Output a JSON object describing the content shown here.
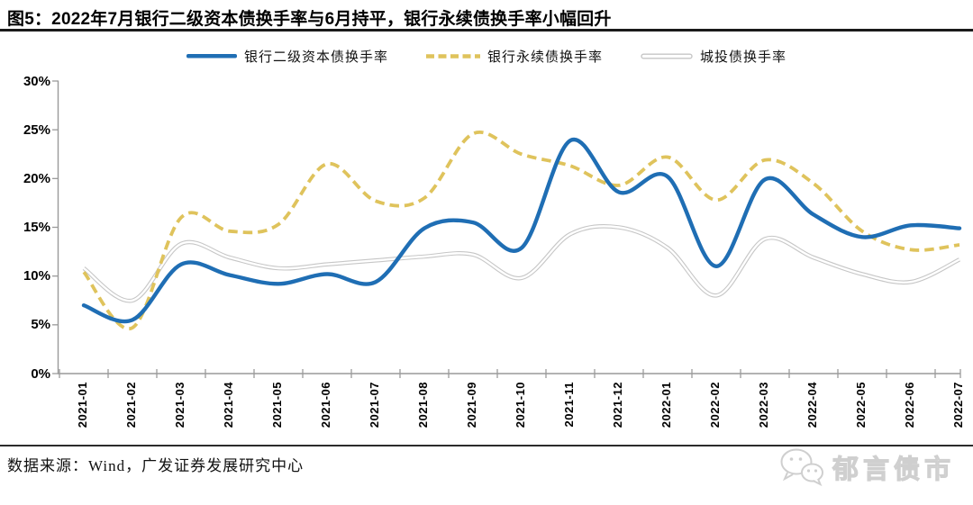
{
  "figure": {
    "label": "图5：",
    "title": "2022年7月银行二级资本债换手率与6月持平，银行永续债换手率小幅回升"
  },
  "source_note": "数据来源：Wind，广发证券发展研究中心",
  "watermark": {
    "icon": "wechat-icon",
    "text": "郁言债市"
  },
  "colors": {
    "tier2_blue": "#1f6eb4",
    "perpetual_yellow": "#dfc35c",
    "chengtou_gray": "#c6c6c6",
    "axis_gray": "#9a9a9a",
    "watermark_gray": "#cfcfcf"
  },
  "chart_data": {
    "type": "line",
    "title": "",
    "xlabel": "",
    "ylabel": "",
    "ylim": [
      0,
      30
    ],
    "ytick_step": 5,
    "ytick_labels": [
      "0%",
      "5%",
      "10%",
      "15%",
      "20%",
      "25%",
      "30%"
    ],
    "grid": false,
    "legend_position": "top",
    "categories": [
      "2021-01",
      "2021-02",
      "2021-03",
      "2021-04",
      "2021-05",
      "2021-06",
      "2021-07",
      "2021-08",
      "2021-09",
      "2021-10",
      "2021-11",
      "2021-12",
      "2022-01",
      "2022-02",
      "2022-03",
      "2022-04",
      "2022-05",
      "2022-06",
      "2022-07"
    ],
    "series": [
      {
        "name": "银行二级资本债换手率",
        "style": "solid",
        "color_key": "tier2_blue",
        "values": [
          7.0,
          5.5,
          11.2,
          10.1,
          9.2,
          10.2,
          9.4,
          14.9,
          15.5,
          12.9,
          23.9,
          18.6,
          20.2,
          11.0,
          19.9,
          16.3,
          14.0,
          15.2,
          14.9
        ]
      },
      {
        "name": "银行永续债换手率",
        "style": "dashed",
        "color_key": "perpetual_yellow",
        "values": [
          10.4,
          4.7,
          16.0,
          14.6,
          15.3,
          21.5,
          17.7,
          18.0,
          24.6,
          22.5,
          21.3,
          19.3,
          22.2,
          17.8,
          21.9,
          19.5,
          14.6,
          12.7,
          13.2
        ]
      },
      {
        "name": "城投债换手率",
        "style": "tube",
        "color_key": "chengtou_gray",
        "values": [
          10.8,
          7.5,
          13.3,
          11.9,
          10.8,
          11.2,
          11.6,
          12.0,
          12.2,
          9.8,
          14.3,
          15.0,
          12.9,
          8.0,
          13.8,
          11.9,
          10.2,
          9.4,
          11.7
        ]
      }
    ]
  }
}
